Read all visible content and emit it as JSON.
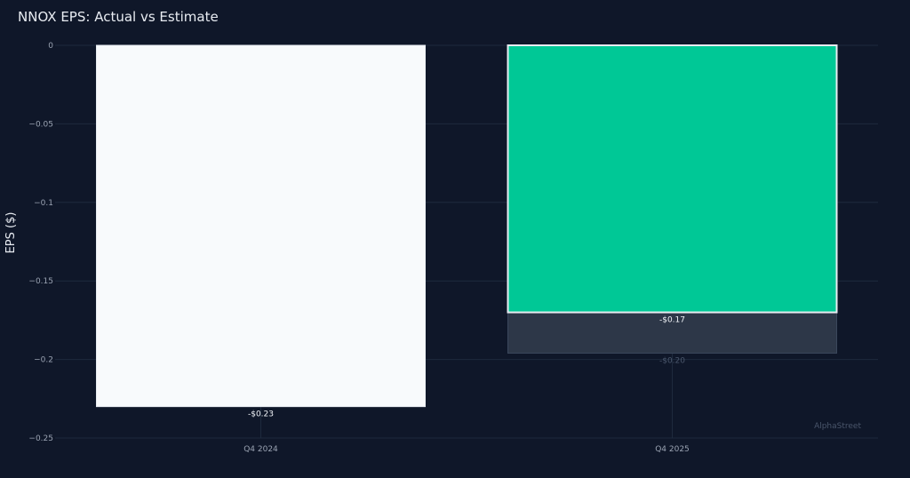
{
  "chart_data": {
    "type": "bar",
    "title": "NNOX EPS: Actual vs Estimate",
    "xlabel": "",
    "ylabel": "EPS ($)",
    "ylim": [
      -0.25,
      0
    ],
    "yticks": [
      0,
      -0.05,
      -0.1,
      -0.15,
      -0.2,
      -0.25
    ],
    "ytick_labels": [
      "0",
      "−0.05",
      "−0.1",
      "−0.15",
      "−0.2",
      "−0.25"
    ],
    "categories": [
      "Q4 2024",
      "Q4 2025"
    ],
    "grid": true,
    "series": [
      {
        "role": "estimate",
        "values": [
          null,
          -0.196
        ],
        "labels": [
          null,
          "-$0.20"
        ],
        "color": "#2d3748"
      },
      {
        "role": "actual",
        "values": [
          -0.23,
          -0.17
        ],
        "labels": [
          "-$0.23",
          "-$0.17"
        ],
        "colors": [
          "#f8fafc",
          "#00c896"
        ]
      }
    ],
    "watermark": "AlphaStreet"
  },
  "colors": {
    "background": "#0f1729",
    "grid": "#1e2a3d",
    "text": "#9aa3b2"
  }
}
